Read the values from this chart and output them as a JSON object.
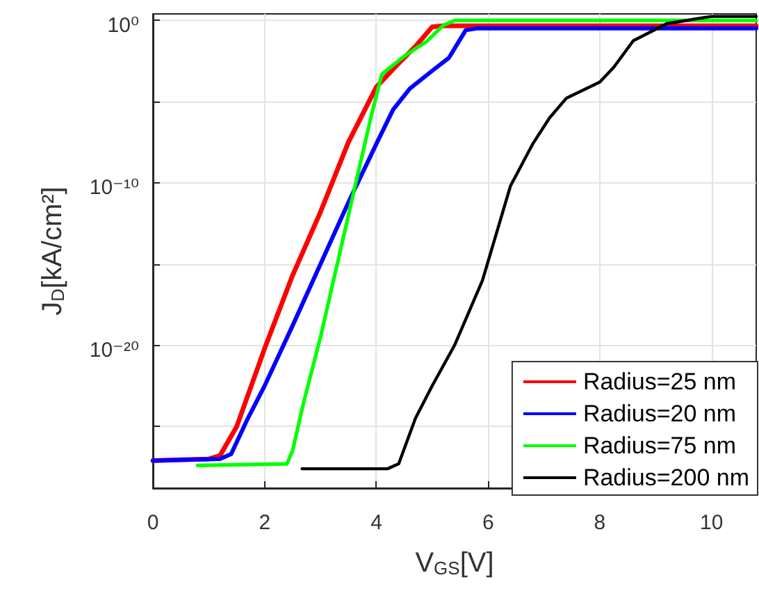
{
  "chart_data": {
    "type": "line",
    "xlabel": "V$_{GS}$[V]",
    "ylabel": "J$_{D}$[kA/cm²]",
    "log": "y",
    "grid": true,
    "legend": "bottom right",
    "line_style": "solid",
    "marker": "none",
    "xlim": [
      0,
      10.8
    ],
    "xticks": [
      0,
      2,
      4,
      6,
      8,
      10
    ],
    "ylim": [
      1.6e-29,
      2.5
    ],
    "yticks": [
      {
        "value": 1e-25,
        "label": null
      },
      {
        "value": 1e-20,
        "label": "10⁻²⁰"
      },
      {
        "value": 1e-15,
        "label": null
      },
      {
        "value": 1e-10,
        "label": "10⁻¹⁰"
      },
      {
        "value": 1e-05,
        "label": null
      },
      {
        "value": 1,
        "label": "10⁰"
      }
    ],
    "series": [
      {
        "name": "Radius=25 nm",
        "color": "#ff0000",
        "x": [
          0,
          1.0,
          1.2,
          1.5,
          2.0,
          2.5,
          3.0,
          3.5,
          4.0,
          4.3,
          4.7,
          5.0,
          5.2,
          10.8
        ],
        "values": [
          7.9e-28,
          1e-27,
          1.6e-27,
          1e-25,
          6.3e-21,
          2e-16,
          1.6e-12,
          3.2e-08,
          7.9e-05,
          0.001,
          0.025,
          0.4,
          0.46,
          0.46
        ]
      },
      {
        "name": "Radius=20 nm",
        "color": "#0000ff",
        "x": [
          0,
          1.2,
          1.4,
          1.7,
          2.0,
          2.5,
          3.0,
          3.5,
          4.0,
          4.3,
          4.6,
          5.0,
          5.3,
          5.6,
          5.8,
          10.8
        ],
        "values": [
          7.9e-28,
          1e-27,
          2e-27,
          3.2e-25,
          3.2e-23,
          1.6e-19,
          1e-15,
          6.3e-12,
          2.5e-08,
          3.2e-06,
          6.3e-05,
          0.00079,
          0.005,
          0.25,
          0.32,
          0.32
        ]
      },
      {
        "name": "Radius=75 nm",
        "color": "#00ff00",
        "x": [
          0.8,
          2.4,
          2.5,
          2.7,
          3.0,
          3.3,
          3.6,
          3.9,
          4.1,
          4.5,
          4.9,
          5.2,
          5.4,
          10.8
        ],
        "values": [
          4e-28,
          5e-28,
          3.2e-27,
          3.2e-24,
          3.2e-20,
          1e-15,
          3.2e-11,
          1e-06,
          0.0005,
          0.0063,
          0.05,
          0.5,
          1,
          1
        ]
      },
      {
        "name": "Radius=200 nm",
        "color": "#000000",
        "x": [
          2.67,
          4.2,
          4.4,
          4.7,
          5.0,
          5.4,
          5.9,
          6.4,
          6.8,
          7.1,
          7.4,
          8.0,
          8.25,
          8.6,
          9.2,
          10.0,
          10.8
        ],
        "values": [
          2.5e-28,
          2.5e-28,
          5e-28,
          3.2e-25,
          3.2e-23,
          1e-20,
          1e-16,
          6.3e-11,
          2.5e-08,
          1e-06,
          1.6e-05,
          0.00016,
          0.0013,
          0.056,
          0.63,
          1.75,
          1.75
        ]
      }
    ]
  }
}
